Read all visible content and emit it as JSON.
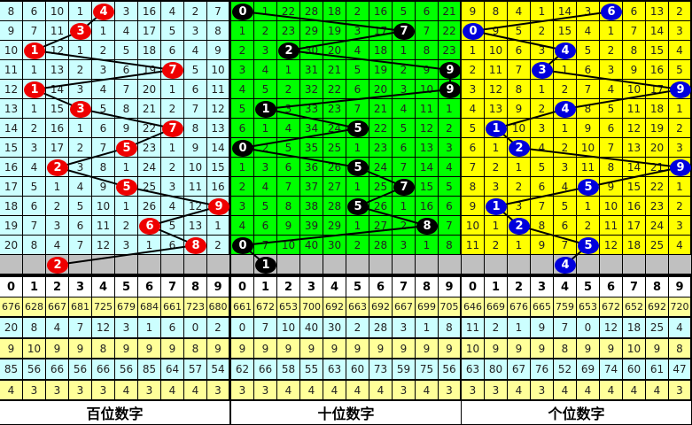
{
  "chart_data": {
    "type": "table",
    "panels": [
      {
        "label": "百位数字",
        "bg": "#ccffff",
        "ball_color": "#ee0000",
        "rows": [
          [
            8,
            6,
            10,
            1,
            4,
            3,
            16,
            4,
            2,
            7
          ],
          [
            9,
            7,
            11,
            3,
            1,
            4,
            17,
            5,
            3,
            8
          ],
          [
            10,
            1,
            12,
            1,
            2,
            5,
            18,
            6,
            4,
            9
          ],
          [
            11,
            1,
            13,
            2,
            3,
            6,
            19,
            7,
            5,
            10
          ],
          [
            12,
            1,
            14,
            3,
            4,
            7,
            20,
            1,
            6,
            11
          ],
          [
            13,
            1,
            15,
            3,
            5,
            8,
            21,
            2,
            7,
            12
          ],
          [
            14,
            2,
            16,
            1,
            6,
            9,
            22,
            7,
            8,
            13
          ],
          [
            15,
            3,
            17,
            2,
            7,
            5,
            23,
            1,
            9,
            14
          ],
          [
            16,
            4,
            2,
            3,
            8,
            1,
            24,
            2,
            10,
            15
          ],
          [
            17,
            5,
            1,
            4,
            9,
            5,
            25,
            3,
            11,
            16
          ],
          [
            18,
            6,
            2,
            5,
            10,
            1,
            26,
            4,
            12,
            9
          ],
          [
            19,
            7,
            3,
            6,
            11,
            2,
            6,
            5,
            13,
            1
          ],
          [
            20,
            8,
            4,
            7,
            12,
            3,
            1,
            6,
            8,
            2
          ]
        ],
        "draws": [
          4,
          3,
          1,
          7,
          1,
          3,
          7,
          5,
          2,
          5,
          9,
          6,
          8,
          2
        ],
        "digits": [
          "0",
          "1",
          "2",
          "3",
          "4",
          "5",
          "6",
          "7",
          "8",
          "9"
        ],
        "stats": [
          [
            676,
            628,
            667,
            681,
            725,
            679,
            684,
            661,
            723,
            680
          ],
          [
            20,
            8,
            4,
            7,
            12,
            3,
            1,
            6,
            0,
            2
          ],
          [
            9,
            10,
            9,
            9,
            8,
            9,
            9,
            9,
            8,
            9
          ],
          [
            85,
            56,
            66,
            56,
            66,
            56,
            85,
            64,
            57,
            54
          ],
          [
            4,
            3,
            3,
            3,
            3,
            4,
            3,
            4,
            4,
            3
          ]
        ]
      },
      {
        "label": "十位数字",
        "bg": "#00ff00",
        "ball_color": "#000000",
        "rows": [
          [
            0,
            1,
            22,
            28,
            18,
            2,
            16,
            5,
            6,
            21
          ],
          [
            1,
            2,
            23,
            29,
            19,
            3,
            17,
            7,
            7,
            22
          ],
          [
            2,
            3,
            2,
            30,
            20,
            4,
            18,
            1,
            8,
            23
          ],
          [
            3,
            4,
            1,
            31,
            21,
            5,
            19,
            2,
            9,
            9
          ],
          [
            4,
            5,
            2,
            32,
            22,
            6,
            20,
            3,
            10,
            9
          ],
          [
            5,
            1,
            3,
            33,
            23,
            7,
            21,
            4,
            11,
            1
          ],
          [
            6,
            1,
            4,
            34,
            24,
            5,
            22,
            5,
            12,
            2
          ],
          [
            0,
            2,
            5,
            35,
            25,
            1,
            23,
            6,
            13,
            3
          ],
          [
            1,
            3,
            6,
            36,
            26,
            5,
            24,
            7,
            14,
            4
          ],
          [
            2,
            4,
            7,
            37,
            27,
            1,
            25,
            7,
            15,
            5
          ],
          [
            3,
            5,
            8,
            38,
            28,
            5,
            26,
            1,
            16,
            6
          ],
          [
            4,
            6,
            9,
            39,
            29,
            1,
            27,
            2,
            8,
            7
          ],
          [
            0,
            7,
            10,
            40,
            30,
            2,
            28,
            3,
            1,
            8
          ]
        ],
        "draws": [
          0,
          7,
          2,
          9,
          9,
          1,
          5,
          0,
          5,
          7,
          5,
          8,
          0,
          1
        ],
        "digits": [
          "0",
          "1",
          "2",
          "3",
          "4",
          "5",
          "6",
          "7",
          "8",
          "9"
        ],
        "stats": [
          [
            661,
            672,
            653,
            700,
            692,
            663,
            692,
            667,
            699,
            705
          ],
          [
            0,
            7,
            10,
            40,
            30,
            2,
            28,
            3,
            1,
            8
          ],
          [
            9,
            9,
            9,
            9,
            9,
            9,
            9,
            9,
            9,
            9
          ],
          [
            62,
            66,
            58,
            55,
            63,
            60,
            73,
            59,
            75,
            56
          ],
          [
            3,
            3,
            4,
            4,
            4,
            4,
            4,
            3,
            4,
            3
          ]
        ]
      },
      {
        "label": "个位数字",
        "bg": "#ffff00",
        "ball_color": "#0000dd",
        "rows": [
          [
            9,
            8,
            4,
            1,
            14,
            3,
            6,
            6,
            13,
            2
          ],
          [
            0,
            9,
            5,
            2,
            15,
            4,
            1,
            7,
            14,
            3
          ],
          [
            1,
            10,
            6,
            3,
            4,
            5,
            2,
            8,
            15,
            4
          ],
          [
            2,
            11,
            7,
            3,
            1,
            6,
            3,
            9,
            16,
            5
          ],
          [
            3,
            12,
            8,
            1,
            2,
            7,
            4,
            10,
            17,
            9
          ],
          [
            4,
            13,
            9,
            2,
            4,
            8,
            5,
            11,
            18,
            1
          ],
          [
            5,
            1,
            10,
            3,
            1,
            9,
            6,
            12,
            19,
            2
          ],
          [
            6,
            1,
            2,
            4,
            2,
            10,
            7,
            13,
            20,
            3
          ],
          [
            7,
            2,
            1,
            5,
            3,
            11,
            8,
            14,
            21,
            9
          ],
          [
            8,
            3,
            2,
            6,
            4,
            5,
            9,
            15,
            22,
            1
          ],
          [
            9,
            1,
            3,
            7,
            5,
            1,
            10,
            16,
            23,
            2
          ],
          [
            10,
            1,
            2,
            8,
            6,
            2,
            11,
            17,
            24,
            3
          ],
          [
            11,
            2,
            1,
            9,
            7,
            5,
            12,
            18,
            25,
            4
          ]
        ],
        "draws": [
          6,
          0,
          4,
          3,
          9,
          4,
          1,
          2,
          9,
          5,
          1,
          2,
          5,
          4
        ],
        "digits": [
          "0",
          "1",
          "2",
          "3",
          "4",
          "5",
          "6",
          "7",
          "8",
          "9"
        ],
        "stats": [
          [
            646,
            669,
            676,
            665,
            759,
            653,
            672,
            652,
            692,
            720
          ],
          [
            11,
            2,
            1,
            9,
            7,
            0,
            12,
            18,
            25,
            4
          ],
          [
            10,
            9,
            9,
            9,
            8,
            9,
            9,
            10,
            9,
            8
          ],
          [
            63,
            80,
            67,
            76,
            52,
            69,
            74,
            60,
            61,
            47
          ],
          [
            3,
            3,
            4,
            3,
            4,
            4,
            4,
            4,
            4,
            3
          ]
        ]
      }
    ],
    "stat_row_colors": [
      "#ffff99",
      "#ccffff",
      "#ffff99",
      "#ccffff",
      "#ffff99"
    ],
    "pending_row_color": "#c0c0c0"
  }
}
